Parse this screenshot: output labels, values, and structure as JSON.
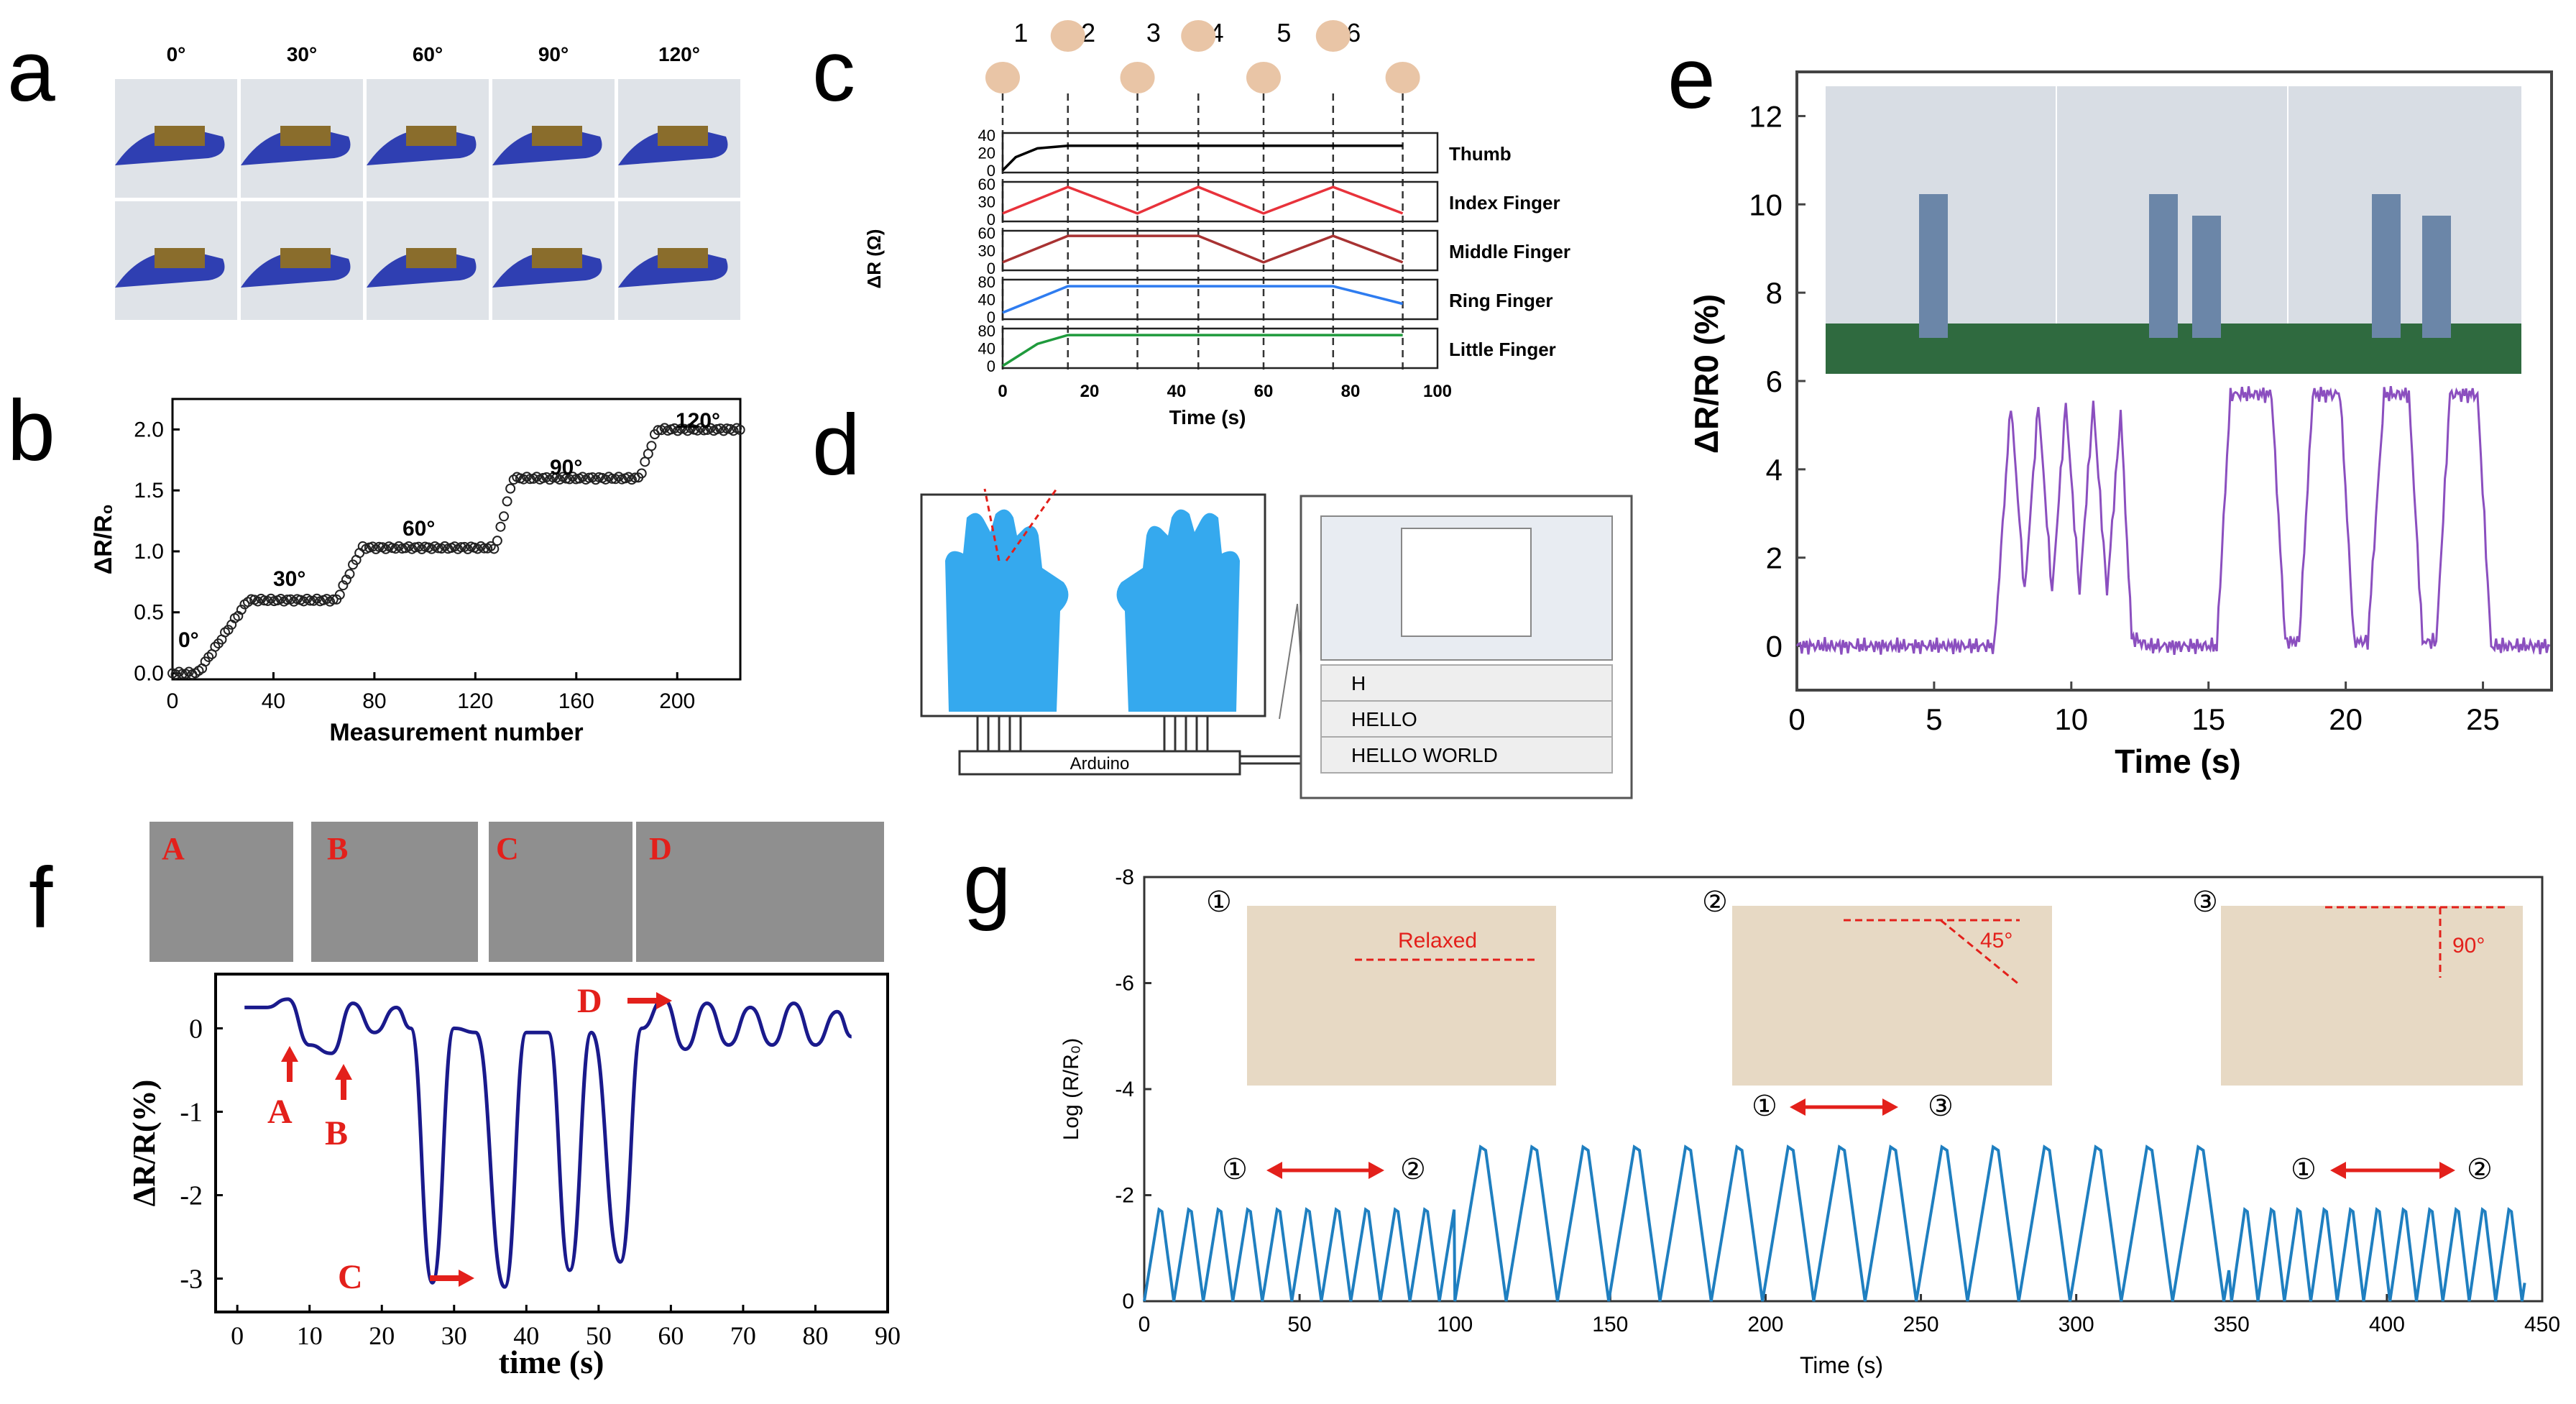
{
  "panels": {
    "a": {
      "label": "a",
      "angles": [
        "0°",
        "30°",
        "60°",
        "90°",
        "120°"
      ]
    },
    "b": {
      "label": "b"
    },
    "c": {
      "label": "c",
      "steps": [
        "1",
        "2",
        "3",
        "4",
        "5",
        "6"
      ]
    },
    "d": {
      "label": "d",
      "arduino": "Arduino",
      "rows": [
        "H",
        "HELLO",
        "HELLO  WORLD"
      ]
    },
    "e": {
      "label": "e"
    },
    "f": {
      "label": "f",
      "photo_labels": [
        "A",
        "B",
        "C",
        "D"
      ],
      "arrows": [
        "A",
        "B",
        "C",
        "D"
      ]
    },
    "g": {
      "label": "g",
      "callouts": {
        "relaxed": "Relaxed",
        "deg45": "45°",
        "deg90": "90°"
      },
      "circled": [
        "①",
        "②",
        "③"
      ]
    }
  },
  "colors": {
    "c_thumb": "#000000",
    "c_index": "#e8323b",
    "c_middle": "#a83232",
    "c_ring": "#2e7cf0",
    "c_little": "#1f9a3c",
    "e_line": "#8b4fbf",
    "f_line": "#1a1a8c",
    "g_line": "#1f7fc0",
    "annot_red": "#e3201b"
  },
  "chart_data": [
    {
      "panel": "b",
      "type": "scatter",
      "xlabel": "Measurement number",
      "ylabel": "ΔR/R₀",
      "xlim": [
        0,
        225
      ],
      "ylim": [
        -0.05,
        2.25
      ],
      "xticks": [
        0,
        40,
        80,
        120,
        160,
        200
      ],
      "yticks": [
        0.0,
        0.5,
        1.0,
        1.5,
        2.0
      ],
      "annotations": [
        "0°",
        "30°",
        "60°",
        "90°",
        "120°"
      ],
      "levels": [
        {
          "from": 0,
          "to": 10,
          "value": 0.0
        },
        {
          "from": 30,
          "to": 65,
          "value": 0.6
        },
        {
          "from": 75,
          "to": 128,
          "value": 1.03
        },
        {
          "from": 135,
          "to": 185,
          "value": 1.6
        },
        {
          "from": 192,
          "to": 225,
          "value": 2.0
        }
      ]
    },
    {
      "panel": "c",
      "type": "line",
      "xlabel": "Time (s)",
      "ylabel": "ΔR (Ω)",
      "xlim": [
        0,
        100
      ],
      "xticks": [
        0,
        20,
        40,
        60,
        80,
        100
      ],
      "series": [
        {
          "name": "Thumb",
          "yticks": [
            0,
            20,
            40
          ],
          "x": [
            0,
            3,
            8,
            15,
            92
          ],
          "values": [
            0,
            15,
            25,
            28,
            28
          ]
        },
        {
          "name": "Index Finger",
          "yticks": [
            0,
            30,
            60
          ],
          "x": [
            0,
            15,
            31,
            45,
            60,
            76,
            92
          ],
          "values": [
            10,
            55,
            10,
            55,
            10,
            55,
            10
          ]
        },
        {
          "name": "Middle Finger",
          "yticks": [
            0,
            30,
            60
          ],
          "x": [
            0,
            15,
            31,
            45,
            60,
            76,
            92
          ],
          "values": [
            10,
            55,
            55,
            55,
            10,
            55,
            10
          ]
        },
        {
          "name": "Ring Finger",
          "yticks": [
            0,
            40,
            80
          ],
          "x": [
            0,
            15,
            76,
            92
          ],
          "values": [
            10,
            70,
            70,
            30
          ]
        },
        {
          "name": "Little Finger",
          "yticks": [
            0,
            40,
            80
          ],
          "x": [
            0,
            8,
            15,
            92
          ],
          "values": [
            0,
            50,
            70,
            70
          ]
        }
      ]
    },
    {
      "panel": "e",
      "type": "line",
      "xlabel": "Time (s)",
      "ylabel": "ΔR/R0 (%)",
      "xlim": [
        0,
        27.5
      ],
      "ylim": [
        -1,
        13
      ],
      "xticks": [
        0,
        5,
        10,
        15,
        20,
        25
      ],
      "yticks": [
        0,
        2,
        4,
        6,
        8,
        10,
        12
      ],
      "series": [
        {
          "name": "",
          "x": [
            0,
            7.2,
            7.8,
            8.3,
            8.8,
            9.3,
            9.8,
            10.3,
            10.8,
            11.3,
            11.8,
            12.2,
            12.8,
            15.3,
            15.8,
            17.3,
            17.8,
            18.3,
            18.8,
            19.8,
            20.3,
            20.8,
            21.4,
            22.3,
            22.8,
            23.3,
            23.8,
            24.8,
            25.3,
            27.5
          ],
          "values": [
            0,
            0,
            5.5,
            1.2,
            5.5,
            1.2,
            5.5,
            1.2,
            5.5,
            1.2,
            5.3,
            0.2,
            0,
            0,
            5.7,
            5.7,
            0.1,
            0.1,
            5.7,
            5.7,
            0.1,
            0.1,
            5.7,
            5.7,
            0.1,
            0.1,
            5.7,
            5.7,
            0,
            0
          ]
        }
      ]
    },
    {
      "panel": "f",
      "type": "line",
      "xlabel": "time (s)",
      "ylabel": "ΔR/R(%)",
      "xlim": [
        -3,
        90
      ],
      "ylim": [
        -3.4,
        0.65
      ],
      "xticks": [
        0,
        10,
        20,
        30,
        40,
        50,
        60,
        70,
        80,
        90
      ],
      "yticks": [
        0,
        -1,
        -2,
        -3
      ],
      "annotations": [
        "A",
        "B",
        "C",
        "D"
      ],
      "series": [
        {
          "name": "",
          "x": [
            1,
            4,
            7,
            10,
            13,
            16,
            19,
            22,
            24,
            27,
            30,
            33,
            37,
            40,
            43,
            46,
            49,
            53,
            56,
            59,
            62,
            65,
            68,
            71,
            74,
            77,
            80,
            83,
            85
          ],
          "values": [
            0.25,
            0.25,
            0.35,
            -0.2,
            -0.3,
            0.3,
            -0.05,
            0.25,
            0,
            -3.05,
            0,
            -0.05,
            -3.1,
            -0.05,
            -0.05,
            -2.9,
            -0.05,
            -2.8,
            0,
            0.35,
            -0.25,
            0.3,
            -0.2,
            0.25,
            -0.2,
            0.3,
            -0.2,
            0.2,
            -0.1
          ]
        }
      ]
    },
    {
      "panel": "g",
      "type": "line",
      "xlabel": "Time (s)",
      "ylabel": "Log (R/R₀)",
      "xlim": [
        0,
        450
      ],
      "ylim": [
        0,
        -8
      ],
      "xticks": [
        0,
        50,
        100,
        150,
        200,
        250,
        300,
        350,
        400,
        450
      ],
      "yticks": [
        0,
        -2,
        -4,
        -6,
        -8
      ],
      "segments": [
        {
          "from": 0,
          "to": 100,
          "period": 9.5,
          "peak": -1.9
        },
        {
          "from": 100,
          "to": 350,
          "period": 16.5,
          "peak": -3.2
        },
        {
          "from": 350,
          "to": 445,
          "period": 8.5,
          "peak": -1.9
        }
      ]
    }
  ]
}
